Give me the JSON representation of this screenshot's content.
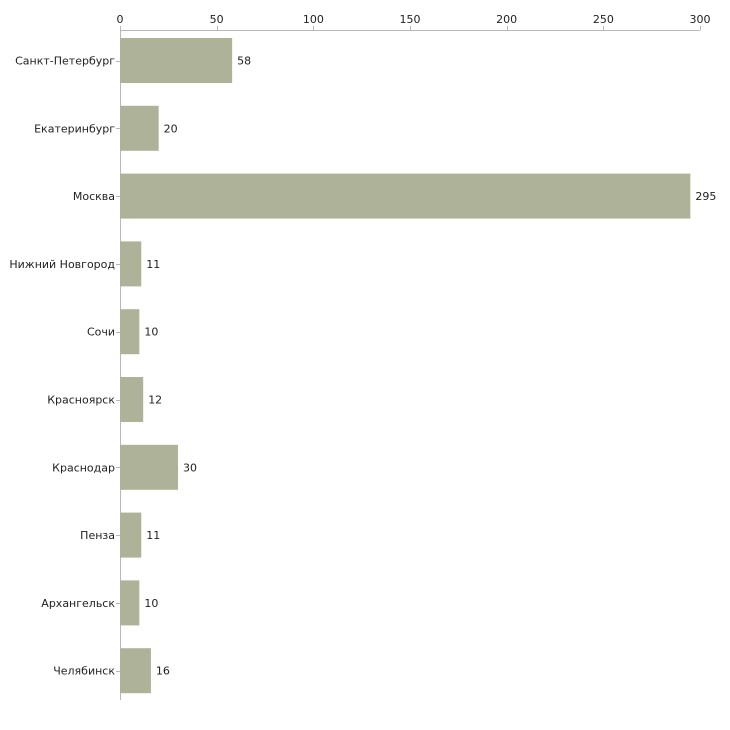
{
  "chart_data": {
    "type": "bar",
    "orientation": "horizontal",
    "title": "",
    "xlabel": "",
    "ylabel": "",
    "xlim": [
      0,
      300
    ],
    "ticks": [
      0,
      50,
      100,
      150,
      200,
      250,
      300
    ],
    "grid": false,
    "axis_position": "top",
    "bar_color": "#adb299",
    "categories": [
      "Санкт-Петербург",
      "Екатеринбург",
      "Москва",
      "Нижний Новгород",
      "Сочи",
      "Красноярск",
      "Краснодар",
      "Пенза",
      "Архангельск",
      "Челябинск"
    ],
    "values": [
      58,
      20,
      295,
      11,
      10,
      12,
      30,
      11,
      10,
      16
    ]
  }
}
